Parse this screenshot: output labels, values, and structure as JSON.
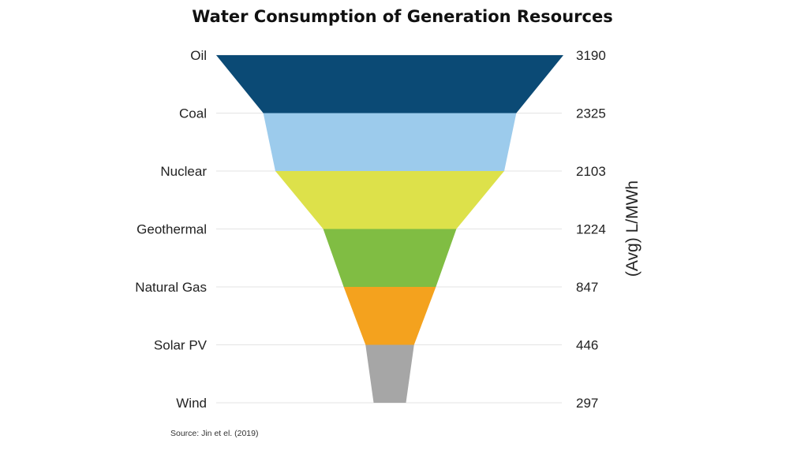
{
  "chart_data": {
    "type": "funnel",
    "title": "Water Consumption of Generation Resources",
    "ylabel": "(Avg) L/MWh",
    "source": "Source: Jin et el. (2019)",
    "grid": true,
    "categories": [
      "Oil",
      "Coal",
      "Nuclear",
      "Geothermal",
      "Natural Gas",
      "Solar PV",
      "Wind"
    ],
    "values": [
      3190,
      2325,
      2103,
      1224,
      847,
      446,
      297
    ],
    "value_labels": [
      "3190",
      "2325",
      "2103",
      "1224",
      "847",
      "446",
      "297"
    ],
    "colors": [
      "#0b4a75",
      "#9ccbec",
      "#dde14a",
      "#80bd43",
      "#f4a21e",
      "#a6a6a6"
    ]
  }
}
